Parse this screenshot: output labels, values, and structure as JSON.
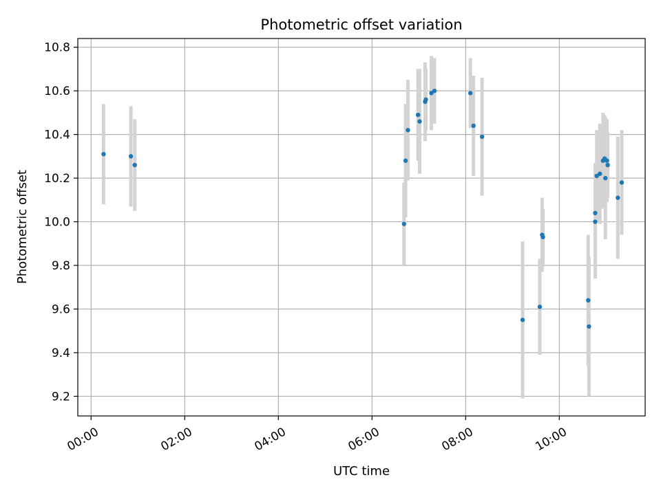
{
  "chart_data": {
    "type": "scatter",
    "title": "Photometric offset variation",
    "xlabel": "UTC time",
    "ylabel": "Photometric offset",
    "x_ticks": [
      "00:00",
      "02:00",
      "04:00",
      "06:00",
      "08:00",
      "10:00"
    ],
    "y_ticks": [
      "9.2",
      "9.4",
      "9.6",
      "9.8",
      "10.0",
      "10.2",
      "10.4",
      "10.6",
      "10.8"
    ],
    "xlim": [
      "-00:17",
      "11:50"
    ],
    "ylim": [
      9.11,
      10.84
    ],
    "grid": true,
    "colors": {
      "point": "#1f77b4",
      "errorbar": "#d3d3d3"
    },
    "points": [
      {
        "t": "00:16",
        "y": 10.31,
        "err": 0.23
      },
      {
        "t": "00:51",
        "y": 10.3,
        "err": 0.23
      },
      {
        "t": "00:56",
        "y": 10.26,
        "err": 0.21
      },
      {
        "t": "06:41",
        "y": 9.99,
        "err": 0.19
      },
      {
        "t": "06:43",
        "y": 10.28,
        "err": 0.26
      },
      {
        "t": "06:46",
        "y": 10.42,
        "err": 0.23
      },
      {
        "t": "06:59",
        "y": 10.49,
        "err": 0.21
      },
      {
        "t": "07:01",
        "y": 10.46,
        "err": 0.24
      },
      {
        "t": "07:08",
        "y": 10.55,
        "err": 0.18
      },
      {
        "t": "07:09",
        "y": 10.56,
        "err": 0.14
      },
      {
        "t": "07:16",
        "y": 10.59,
        "err": 0.17
      },
      {
        "t": "07:20",
        "y": 10.6,
        "err": 0.15
      },
      {
        "t": "08:06",
        "y": 10.59,
        "err": 0.16
      },
      {
        "t": "08:10",
        "y": 10.44,
        "err": 0.23
      },
      {
        "t": "08:21",
        "y": 10.39,
        "err": 0.27
      },
      {
        "t": "09:13",
        "y": 9.55,
        "err": 0.36
      },
      {
        "t": "09:35",
        "y": 9.61,
        "err": 0.22
      },
      {
        "t": "09:38",
        "y": 9.94,
        "err": 0.17
      },
      {
        "t": "09:39",
        "y": 9.93,
        "err": 0.13
      },
      {
        "t": "10:37",
        "y": 9.64,
        "err": 0.3
      },
      {
        "t": "10:38",
        "y": 9.52,
        "err": 0.32
      },
      {
        "t": "10:46",
        "y": 10.04,
        "err": 0.23
      },
      {
        "t": "10:46",
        "y": 10.0,
        "err": 0.26
      },
      {
        "t": "10:48",
        "y": 10.21,
        "err": 0.21
      },
      {
        "t": "10:52",
        "y": 10.22,
        "err": 0.23
      },
      {
        "t": "10:56",
        "y": 10.28,
        "err": 0.22
      },
      {
        "t": "10:58",
        "y": 10.29,
        "err": 0.2
      },
      {
        "t": "10:59",
        "y": 10.2,
        "err": 0.28
      },
      {
        "t": "11:01",
        "y": 10.28,
        "err": 0.19
      },
      {
        "t": "11:02",
        "y": 10.26,
        "err": 0.15
      },
      {
        "t": "11:15",
        "y": 10.11,
        "err": 0.28
      },
      {
        "t": "11:20",
        "y": 10.18,
        "err": 0.24
      }
    ]
  }
}
